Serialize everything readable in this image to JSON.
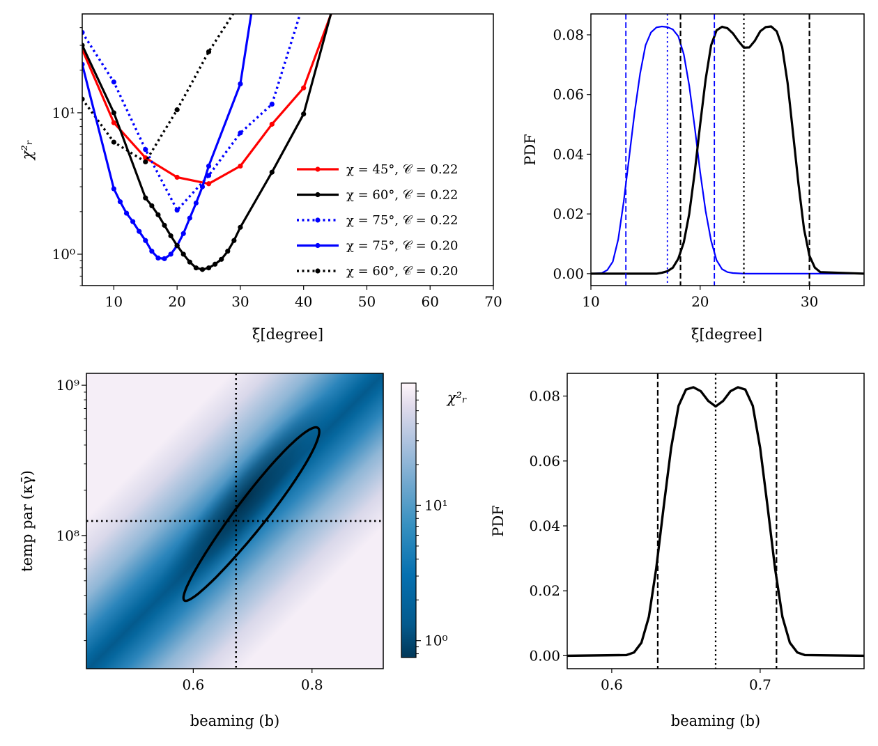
{
  "chart_data": [
    {
      "type": "line",
      "panel": "top-left",
      "xlabel": "ξ[degree]",
      "ylabel": "χ²ᵣ",
      "xlim": [
        5,
        70
      ],
      "ylim": [
        0.6,
        50
      ],
      "yscale": "log",
      "xticks": [
        "10",
        "20",
        "30",
        "40",
        "50",
        "60",
        "70"
      ],
      "yticks": [
        {
          "value": 1,
          "label": "10⁰"
        },
        {
          "value": 10,
          "label": "10¹"
        }
      ],
      "legend_position": "lower-right",
      "series": [
        {
          "name": "χ = 45°, 𝒞 = 0.22",
          "color": "#ff0000",
          "style": "solid",
          "x": [
            5,
            10,
            15,
            20,
            25,
            30,
            35,
            40,
            45
          ],
          "y": [
            28,
            8.5,
            4.8,
            3.5,
            3.15,
            4.2,
            8.3,
            15,
            60
          ]
        },
        {
          "name": "χ = 60°, 𝒞 = 0.22",
          "color": "#000000",
          "style": "solid",
          "x": [
            5,
            10,
            15,
            16,
            17,
            18,
            19,
            20,
            21,
            22,
            23,
            24,
            25,
            26,
            27,
            28,
            29,
            30,
            35,
            40,
            45
          ],
          "y": [
            30,
            10,
            2.5,
            2.2,
            1.9,
            1.6,
            1.35,
            1.15,
            1.0,
            0.88,
            0.8,
            0.78,
            0.8,
            0.85,
            0.92,
            1.05,
            1.25,
            1.55,
            3.8,
            9.8,
            65
          ]
        },
        {
          "name": "χ = 75°, 𝒞 = 0.22",
          "color": "#0000ff",
          "style": "dotted",
          "x": [
            5,
            10,
            15,
            20,
            25,
            30,
            35,
            40
          ],
          "y": [
            37,
            16.5,
            5.5,
            2.05,
            3.6,
            7.2,
            11.5,
            60
          ]
        },
        {
          "name": "χ = 75°, 𝒞 = 0.20",
          "color": "#0000ff",
          "style": "solid",
          "x": [
            5,
            10,
            11,
            12,
            13,
            14,
            15,
            16,
            17,
            18,
            19,
            20,
            21,
            22,
            23,
            24,
            25,
            30,
            32
          ],
          "y": [
            22,
            2.9,
            2.35,
            1.95,
            1.7,
            1.45,
            1.25,
            1.05,
            0.94,
            0.93,
            1.0,
            1.15,
            1.4,
            1.8,
            2.3,
            3.0,
            4.2,
            16,
            60
          ]
        },
        {
          "name": "χ = 60°, 𝒞 = 0.20",
          "color": "#000000",
          "style": "dotted",
          "x": [
            5,
            10,
            15,
            20,
            25,
            30
          ],
          "y": [
            12.5,
            6.2,
            4.5,
            10.5,
            27,
            60
          ]
        }
      ]
    },
    {
      "type": "line",
      "panel": "top-right",
      "xlabel": "ξ[degree]",
      "ylabel": "PDF",
      "xlim": [
        10,
        35
      ],
      "ylim": [
        -0.004,
        0.087
      ],
      "xticks": [
        "10",
        "20",
        "30"
      ],
      "yticks": [
        "0.00",
        "0.02",
        "0.04",
        "0.06",
        "0.08"
      ],
      "series": [
        {
          "color": "#0000ff",
          "x": [
            10,
            11,
            11.5,
            12,
            12.5,
            13,
            13.5,
            14,
            14.5,
            15,
            15.5,
            16,
            16.5,
            17,
            17.5,
            18,
            18.5,
            19,
            19.5,
            20,
            20.5,
            21,
            21.5,
            22,
            22.5,
            23,
            24,
            25,
            35
          ],
          "y": [
            0,
            0.0002,
            0.0012,
            0.004,
            0.0115,
            0.024,
            0.039,
            0.054,
            0.067,
            0.0765,
            0.0808,
            0.0825,
            0.0828,
            0.0826,
            0.0818,
            0.0795,
            0.0735,
            0.063,
            0.049,
            0.034,
            0.021,
            0.011,
            0.0045,
            0.0015,
            0.0005,
            0.0002,
            0,
            0,
            0
          ]
        },
        {
          "color": "#000000",
          "x": [
            10,
            16,
            16.5,
            17,
            17.5,
            18,
            18.5,
            19,
            19.5,
            20,
            20.5,
            21,
            21.5,
            22,
            22.5,
            23,
            23.5,
            24,
            24.5,
            25,
            25.5,
            26,
            26.5,
            27,
            27.5,
            28,
            28.5,
            29,
            29.5,
            30,
            30.5,
            31,
            35
          ],
          "y": [
            0,
            0,
            0.0003,
            0.0008,
            0.002,
            0.005,
            0.0105,
            0.02,
            0.034,
            0.05,
            0.065,
            0.0765,
            0.0815,
            0.0827,
            0.0822,
            0.0805,
            0.0779,
            0.0757,
            0.0758,
            0.078,
            0.0812,
            0.0826,
            0.0828,
            0.0812,
            0.076,
            0.064,
            0.047,
            0.03,
            0.015,
            0.006,
            0.002,
            0.0005,
            0
          ]
        }
      ],
      "vlines": [
        {
          "x": 13.2,
          "color": "#0000ff",
          "style": "dashed"
        },
        {
          "x": 17.0,
          "color": "#0000ff",
          "style": "dotted"
        },
        {
          "x": 21.3,
          "color": "#0000ff",
          "style": "dashed"
        },
        {
          "x": 18.2,
          "color": "#000000",
          "style": "dashed"
        },
        {
          "x": 24.0,
          "color": "#000000",
          "style": "dotted"
        },
        {
          "x": 30.0,
          "color": "#000000",
          "style": "dashed"
        }
      ]
    },
    {
      "type": "heatmap",
      "panel": "bottom-left",
      "xlabel": "beaming (b)",
      "ylabel": "temp par (κγ̄)",
      "xlim": [
        0.42,
        0.92
      ],
      "ylim": [
        13000000,
        1200000000
      ],
      "yscale": "log",
      "xticks": [
        "0.6",
        "0.8"
      ],
      "yticks": [
        {
          "value": 100000000,
          "label": "10⁸"
        },
        {
          "value": 1000000000,
          "label": "10⁹"
        }
      ],
      "colorbar": {
        "label": "χ²ᵣ",
        "scale": "log",
        "range": [
          0.75,
          80
        ],
        "colormap": "PuBu_r",
        "ticks": [
          {
            "value": 1,
            "label": "10⁰"
          },
          {
            "value": 10,
            "label": "10¹"
          }
        ]
      },
      "best_fit": {
        "b": 0.672,
        "temp_par": 125000000
      },
      "contour_endpoints": [
        {
          "b": 0.585,
          "temp_par": 37000000
        },
        {
          "b": 0.81,
          "temp_par": 520000000
        }
      ]
    },
    {
      "type": "line",
      "panel": "bottom-right",
      "xlabel": "beaming (b)",
      "ylabel": "PDF",
      "xlim": [
        0.57,
        0.77
      ],
      "ylim": [
        -0.004,
        0.087
      ],
      "xticks": [
        "0.6",
        "0.7"
      ],
      "yticks": [
        "0.00",
        "0.02",
        "0.04",
        "0.06",
        "0.08"
      ],
      "series": [
        {
          "color": "#000000",
          "x": [
            0.57,
            0.61,
            0.615,
            0.62,
            0.625,
            0.63,
            0.635,
            0.64,
            0.645,
            0.65,
            0.655,
            0.66,
            0.665,
            0.67,
            0.675,
            0.68,
            0.685,
            0.69,
            0.695,
            0.7,
            0.705,
            0.71,
            0.715,
            0.72,
            0.725,
            0.73,
            0.77
          ],
          "y": [
            0,
            0.0002,
            0.001,
            0.004,
            0.012,
            0.027,
            0.046,
            0.064,
            0.077,
            0.082,
            0.0827,
            0.0815,
            0.0785,
            0.0768,
            0.0785,
            0.0815,
            0.0827,
            0.082,
            0.077,
            0.064,
            0.046,
            0.027,
            0.012,
            0.004,
            0.001,
            0.0002,
            0
          ]
        }
      ],
      "vlines": [
        {
          "x": 0.631,
          "color": "#000000",
          "style": "dashed"
        },
        {
          "x": 0.67,
          "color": "#000000",
          "style": "dotted"
        },
        {
          "x": 0.711,
          "color": "#000000",
          "style": "dashed"
        }
      ]
    }
  ]
}
